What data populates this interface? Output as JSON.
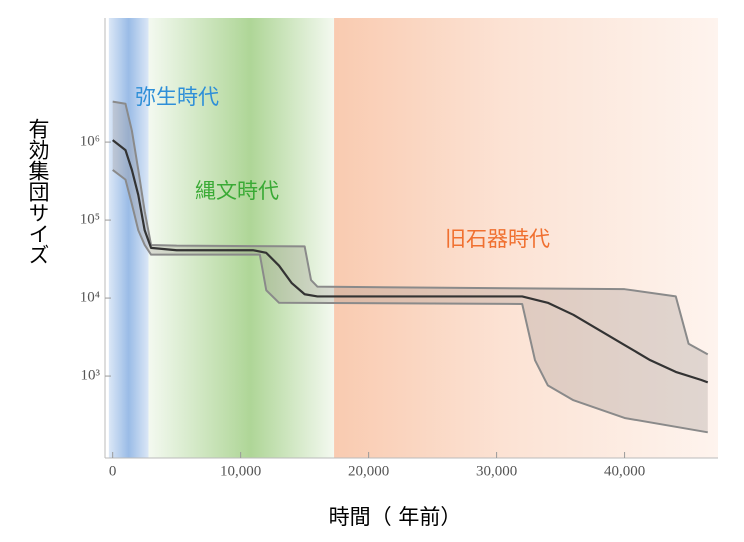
{
  "chart_data": {
    "type": "line",
    "x_label": "時間（ 年前）",
    "y_label": "有効集団サイズ",
    "log_y": true,
    "grid": false,
    "xlim": [
      -600,
      47300
    ],
    "ylim": [
      89,
      39000000
    ],
    "xticks": [
      0,
      {
        "value": 10000,
        "label": "10,000"
      },
      {
        "value": 20000,
        "label": "20,000"
      },
      {
        "value": 30000,
        "label": "30,000"
      },
      {
        "value": 40000,
        "label": "40,000"
      }
    ],
    "yticks": [
      {
        "value": 1000,
        "label": "10³"
      },
      {
        "value": 10000,
        "label": "10⁴"
      },
      {
        "value": 100000,
        "label": "10⁵"
      },
      {
        "value": 1000000,
        "label": "10⁶"
      }
    ],
    "periods": [
      {
        "label": "弥生時代",
        "color": "#6f9fdc",
        "text_color": "#2e8fd8",
        "start": -300,
        "end": 2800
      },
      {
        "label": "縄文時代",
        "color": "#8cc46a",
        "text_color": "#3aaa35",
        "start": 2800,
        "end": 17300
      },
      {
        "label": "旧石器時代",
        "color": "#f4a070",
        "text_color": "#f07030",
        "start": 17300,
        "end": 47300
      }
    ],
    "band_color": "rgba(150,140,135,0.28)",
    "series": [
      {
        "color": "#333333",
        "width": 2.2,
        "x": [
          0,
          1000,
          1500,
          2000,
          2500,
          3000,
          5000,
          11000,
          12000,
          13000,
          14000,
          15000,
          16000,
          32000,
          34000,
          36000,
          38000,
          40000,
          42000,
          44000,
          46000,
          46500
        ],
        "values": [
          1060000,
          790000,
          440000,
          210000,
          74000,
          44000,
          41000,
          41000,
          38000,
          26000,
          15500,
          11200,
          10500,
          10500,
          8700,
          6100,
          3900,
          2500,
          1600,
          1130,
          890,
          830
        ]
      },
      {
        "color": "#8a8a8a",
        "width": 2,
        "x": [
          0,
          1000,
          1500,
          2000,
          2500,
          3000,
          5000,
          15000,
          15500,
          16000,
          40000,
          44000,
          45000,
          46500
        ],
        "values": [
          3300000,
          3100000,
          1400000,
          440000,
          130000,
          48000,
          47000,
          46000,
          17000,
          14000,
          13000,
          10500,
          2600,
          1900
        ]
      },
      {
        "color": "#8a8a8a",
        "width": 2,
        "x": [
          0,
          1000,
          1500,
          2000,
          2500,
          3000,
          11500,
          12000,
          13000,
          32000,
          33000,
          34000,
          36000,
          40000,
          46500
        ],
        "values": [
          440000,
          330000,
          160000,
          74000,
          48000,
          36000,
          36000,
          12600,
          8700,
          8400,
          1600,
          760,
          490,
          290,
          190
        ]
      }
    ]
  }
}
